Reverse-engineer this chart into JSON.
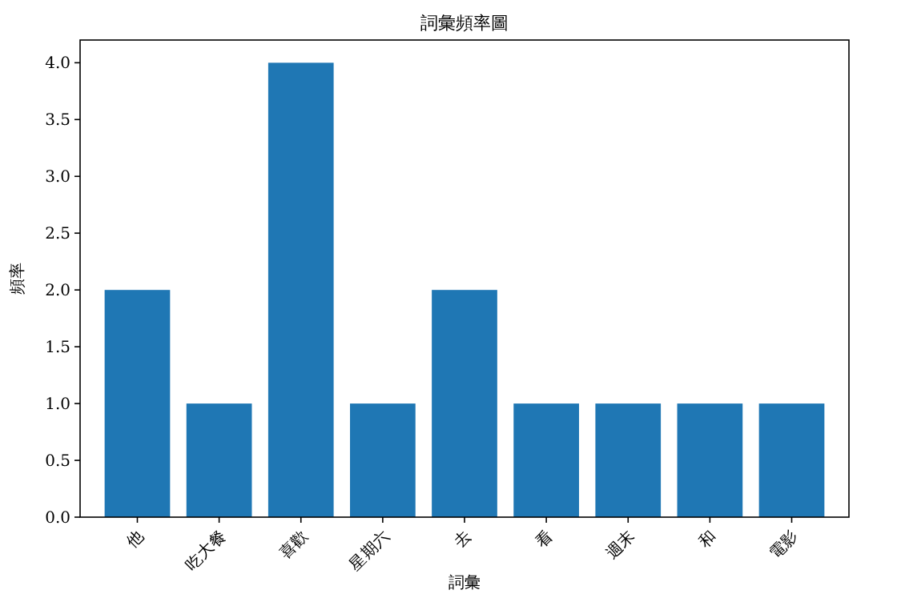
{
  "chart_data": {
    "type": "bar",
    "title": "詞彙頻率圖",
    "xlabel": "詞彙",
    "ylabel": "頻率",
    "categories": [
      "他",
      "吃大餐",
      "喜歡",
      "星期六",
      "去",
      "看",
      "週末",
      "和",
      "電影"
    ],
    "values": [
      2,
      1,
      4,
      1,
      2,
      1,
      1,
      1,
      1
    ],
    "color": "#1f77b4",
    "ylim": [
      0,
      4.2
    ],
    "yticks": [
      {
        "value": 0,
        "label": "0.0"
      },
      {
        "value": 0.5,
        "label": "0.5"
      },
      {
        "value": 1,
        "label": "1.0"
      },
      {
        "value": 1.5,
        "label": "1.5"
      },
      {
        "value": 2,
        "label": "2.0"
      },
      {
        "value": 2.5,
        "label": "2.5"
      },
      {
        "value": 3,
        "label": "3.0"
      },
      {
        "value": 3.5,
        "label": "3.5"
      },
      {
        "value": 4,
        "label": "4.0"
      }
    ],
    "grid": false
  }
}
